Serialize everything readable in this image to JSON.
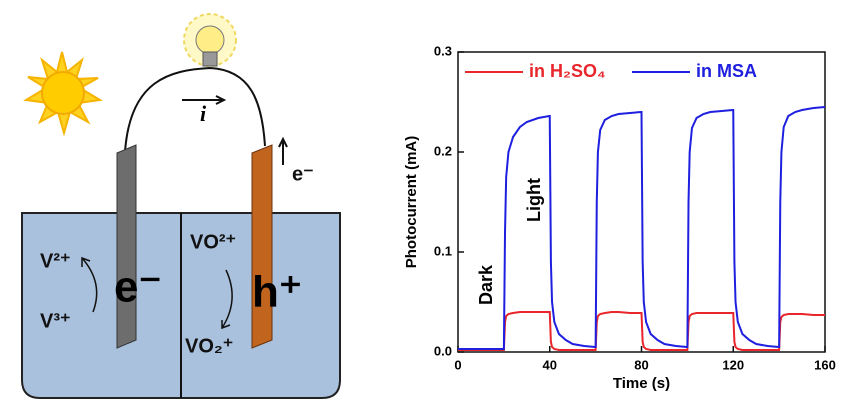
{
  "diagram": {
    "left_ion_top": "V²⁺",
    "left_ion_bottom": "V³⁺",
    "left_carrier": "e⁻",
    "right_ion_top": "VO²⁺",
    "right_ion_bottom": "VO₂⁺",
    "right_carrier": "h⁺",
    "wire_carrier": "e⁻",
    "current": "i"
  },
  "chart_data": {
    "type": "line",
    "xlabel": "Time (s)",
    "ylabel": "Photocurrent (mA)",
    "annotations": [
      "Dark",
      "Light"
    ],
    "legend": "top",
    "xlim": [
      0,
      160
    ],
    "xticks": [
      0,
      40,
      80,
      120,
      160
    ],
    "ylim": [
      0,
      0.3
    ],
    "yticks": [
      {
        "value": 0,
        "label": "0.0"
      },
      {
        "value": 0.1,
        "label": "0.1"
      },
      {
        "value": 0.2,
        "label": "0.2"
      },
      {
        "value": 0.3,
        "label": "0.3"
      }
    ],
    "x": [
      0,
      10,
      20,
      20.5,
      21,
      22,
      24,
      27,
      30,
      35,
      39.8,
      40,
      40.5,
      41,
      42,
      44,
      47,
      50,
      55,
      59.8,
      60,
      60.5,
      61,
      62,
      64,
      67,
      70,
      75,
      79.8,
      80,
      80.5,
      81,
      82,
      84,
      87,
      90,
      95,
      99.8,
      100,
      100.5,
      101,
      102,
      104,
      107,
      110,
      115,
      119.8,
      120,
      120.5,
      121,
      122,
      124,
      127,
      130,
      135,
      139.8,
      140,
      140.5,
      141,
      142,
      144,
      147,
      150,
      155,
      160
    ],
    "series": [
      {
        "name": "in H₂SO₄",
        "color": "#e8262b",
        "values": [
          0.002,
          0.002,
          0.002,
          0.03,
          0.036,
          0.038,
          0.039,
          0.04,
          0.04,
          0.04,
          0.04,
          0.04,
          0.01,
          0.005,
          0.003,
          0.002,
          0.002,
          0.002,
          0.002,
          0.002,
          0.002,
          0.03,
          0.036,
          0.038,
          0.039,
          0.04,
          0.04,
          0.039,
          0.039,
          0.039,
          0.01,
          0.005,
          0.003,
          0.002,
          0.002,
          0.002,
          0.002,
          0.002,
          0.002,
          0.03,
          0.036,
          0.038,
          0.039,
          0.039,
          0.039,
          0.039,
          0.039,
          0.039,
          0.01,
          0.005,
          0.003,
          0.002,
          0.002,
          0.002,
          0.002,
          0.002,
          0.002,
          0.03,
          0.035,
          0.037,
          0.038,
          0.038,
          0.038,
          0.037,
          0.037
        ]
      },
      {
        "name": "in MSA",
        "color": "#1f1fe0",
        "values": [
          0.003,
          0.003,
          0.003,
          0.12,
          0.175,
          0.2,
          0.215,
          0.225,
          0.23,
          0.234,
          0.236,
          0.236,
          0.09,
          0.05,
          0.03,
          0.018,
          0.012,
          0.008,
          0.006,
          0.005,
          0.005,
          0.15,
          0.2,
          0.222,
          0.232,
          0.236,
          0.238,
          0.239,
          0.24,
          0.24,
          0.09,
          0.05,
          0.03,
          0.018,
          0.012,
          0.008,
          0.006,
          0.005,
          0.005,
          0.15,
          0.2,
          0.224,
          0.234,
          0.238,
          0.24,
          0.241,
          0.242,
          0.242,
          0.09,
          0.05,
          0.03,
          0.018,
          0.012,
          0.008,
          0.006,
          0.005,
          0.005,
          0.15,
          0.2,
          0.225,
          0.236,
          0.24,
          0.242,
          0.244,
          0.245
        ]
      }
    ]
  }
}
